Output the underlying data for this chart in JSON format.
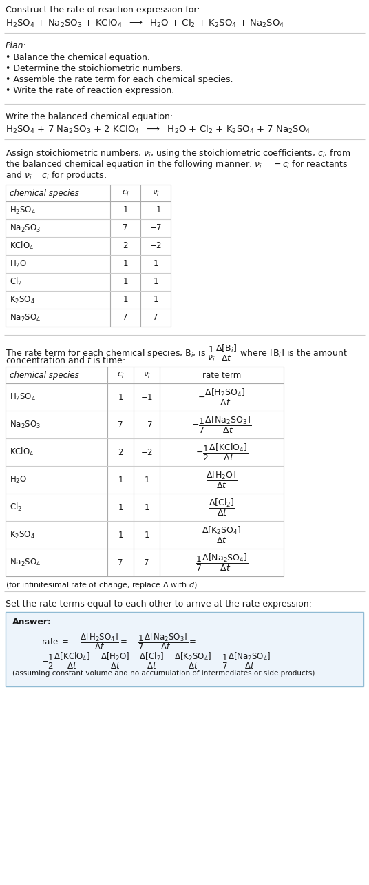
{
  "bg_color": "#ffffff",
  "title_line1": "Construct the rate of reaction expression for:",
  "reaction_unbalanced": "H$_2$SO$_4$ + Na$_2$SO$_3$ + KClO$_4$  $\\longrightarrow$  H$_2$O + Cl$_2$ + K$_2$SO$_4$ + Na$_2$SO$_4$",
  "plan_header": "Plan:",
  "plan_items": [
    "Balance the chemical equation.",
    "Determine the stoichiometric numbers.",
    "Assemble the rate term for each chemical species.",
    "Write the rate of reaction expression."
  ],
  "section2_header": "Write the balanced chemical equation:",
  "reaction_balanced": "H$_2$SO$_4$ + 7 Na$_2$SO$_3$ + 2 KClO$_4$  $\\longrightarrow$  H$_2$O + Cl$_2$ + K$_2$SO$_4$ + 7 Na$_2$SO$_4$",
  "section3_header_lines": [
    "Assign stoichiometric numbers, $\\nu_i$, using the stoichiometric coefficients, $c_i$, from",
    "the balanced chemical equation in the following manner: $\\nu_i = -c_i$ for reactants",
    "and $\\nu_i = c_i$ for products:"
  ],
  "table1_headers": [
    "chemical species",
    "$c_i$",
    "$\\nu_i$"
  ],
  "table1_rows": [
    [
      "H$_2$SO$_4$",
      "1",
      "$-1$"
    ],
    [
      "Na$_2$SO$_3$",
      "7",
      "$-7$"
    ],
    [
      "KClO$_4$",
      "2",
      "$-2$"
    ],
    [
      "H$_2$O",
      "1",
      "1"
    ],
    [
      "Cl$_2$",
      "1",
      "1"
    ],
    [
      "K$_2$SO$_4$",
      "1",
      "1"
    ],
    [
      "Na$_2$SO$_4$",
      "7",
      "7"
    ]
  ],
  "section4_header_line1": "The rate term for each chemical species, B$_i$, is $\\dfrac{1}{\\nu_i}\\dfrac{\\Delta[\\mathrm{B}_i]}{\\Delta t}$ where [B$_i$] is the amount",
  "section4_header_line2": "concentration and $t$ is time:",
  "table2_headers": [
    "chemical species",
    "$c_i$",
    "$\\nu_i$",
    "rate term"
  ],
  "table2_rows": [
    [
      "H$_2$SO$_4$",
      "1",
      "$-1$",
      "$-\\dfrac{\\Delta[\\mathrm{H_2SO_4}]}{\\Delta t}$"
    ],
    [
      "Na$_2$SO$_3$",
      "7",
      "$-7$",
      "$-\\dfrac{1}{7}\\dfrac{\\Delta[\\mathrm{Na_2SO_3}]}{\\Delta t}$"
    ],
    [
      "KClO$_4$",
      "2",
      "$-2$",
      "$-\\dfrac{1}{2}\\dfrac{\\Delta[\\mathrm{KClO_4}]}{\\Delta t}$"
    ],
    [
      "H$_2$O",
      "1",
      "1",
      "$\\dfrac{\\Delta[\\mathrm{H_2O}]}{\\Delta t}$"
    ],
    [
      "Cl$_2$",
      "1",
      "1",
      "$\\dfrac{\\Delta[\\mathrm{Cl_2}]}{\\Delta t}$"
    ],
    [
      "K$_2$SO$_4$",
      "1",
      "1",
      "$\\dfrac{\\Delta[\\mathrm{K_2SO_4}]}{\\Delta t}$"
    ],
    [
      "Na$_2$SO$_4$",
      "7",
      "7",
      "$\\dfrac{1}{7}\\dfrac{\\Delta[\\mathrm{Na_2SO_4}]}{\\Delta t}$"
    ]
  ],
  "footnote": "(for infinitesimal rate of change, replace $\\Delta$ with $d$)",
  "section5_header": "Set the rate terms equal to each other to arrive at the rate expression:",
  "answer_label": "Answer:",
  "answer_line1": "rate $= -\\dfrac{\\Delta[\\mathrm{H_2SO_4}]}{\\Delta t} = -\\dfrac{1}{7}\\dfrac{\\Delta[\\mathrm{Na_2SO_3}]}{\\Delta t} =$",
  "answer_line2": "$-\\dfrac{1}{2}\\dfrac{\\Delta[\\mathrm{KClO_4}]}{\\Delta t} = \\dfrac{\\Delta[\\mathrm{H_2O}]}{\\Delta t} = \\dfrac{\\Delta[\\mathrm{Cl_2}]}{\\Delta t} = \\dfrac{\\Delta[\\mathrm{K_2SO_4}]}{\\Delta t} = \\dfrac{1}{7}\\dfrac{\\Delta[\\mathrm{Na_2SO_4}]}{\\Delta t}$",
  "answer_footnote": "(assuming constant volume and no accumulation of intermediates or side products)",
  "fs": 9.0,
  "fs_small": 8.5
}
